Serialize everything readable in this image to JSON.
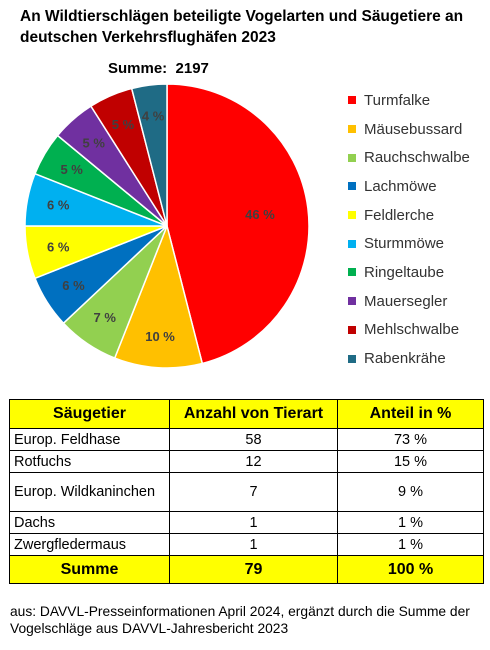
{
  "title": "An Wildtierschlägen beteiligte Vogelarten und Säugetiere an deutschen Verkehrsflughäfen 2023",
  "summe_label": "Summe:",
  "summe_value": "2197",
  "chart_data": {
    "type": "pie",
    "title": "An Wildtierschlägen beteiligte Vogelarten und Säugetiere an deutschen Verkehrsflughäfen 2023",
    "total": 2197,
    "slices": [
      {
        "name": "Turmfalke",
        "value": 46,
        "label": "46 %",
        "color": "#ff0000"
      },
      {
        "name": "Mäusebussard",
        "value": 10,
        "label": "10 %",
        "color": "#ffc000"
      },
      {
        "name": "Rauchschwalbe",
        "value": 7,
        "label": "7 %",
        "color": "#92d050"
      },
      {
        "name": "Lachmöwe",
        "value": 6,
        "label": "6 %",
        "color": "#0070c0"
      },
      {
        "name": "Feldlerche",
        "value": 6,
        "label": "6 %",
        "color": "#ffff00"
      },
      {
        "name": "Sturmmöwe",
        "value": 6,
        "label": "6 %",
        "color": "#00b0f0"
      },
      {
        "name": "Ringeltaube",
        "value": 5,
        "label": "5 %",
        "color": "#00b050"
      },
      {
        "name": "Mauersegler",
        "value": 5,
        "label": "5 %",
        "color": "#7030a0"
      },
      {
        "name": "Mehlschwalbe",
        "value": 5,
        "label": "5 %",
        "color": "#c00000"
      },
      {
        "name": "Rabenkrähe",
        "value": 4,
        "label": "4 %",
        "color": "#1f6b85"
      }
    ],
    "legend_position": "right"
  },
  "table": {
    "headers": [
      "Säugetier",
      "Anzahl von Tierart",
      "Anteil in %"
    ],
    "rows": [
      [
        "Europ. Feldhase",
        "58",
        "73 %"
      ],
      [
        "Rotfuchs",
        "12",
        "15 %"
      ],
      [
        "Europ. Wildkaninchen",
        "7",
        "9 %"
      ],
      [
        "Dachs",
        "1",
        "1 %"
      ],
      [
        "Zwergfledermaus",
        "1",
        "1 %"
      ]
    ],
    "total": [
      "Summe",
      "79",
      "100 %"
    ]
  },
  "source": "aus: DAVVL-Presseinformationen April 2024, ergänzt durch die Summe der Vogelschläge aus DAVVL-Jahresbericht 2023"
}
